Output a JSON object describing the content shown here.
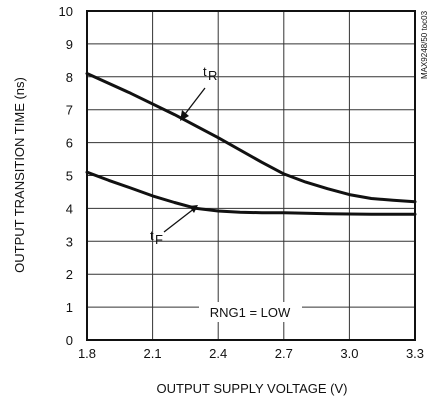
{
  "chart_data": {
    "type": "line",
    "title": "",
    "xlabel": "OUTPUT SUPPLY VOLTAGE (V)",
    "ylabel": "OUTPUT TRANSITION TIME (ns)",
    "xlim": [
      1.8,
      3.3
    ],
    "ylim": [
      0,
      10
    ],
    "x_ticks": [
      "1.8",
      "2.1",
      "2.4",
      "2.7",
      "3.0",
      "3.3"
    ],
    "y_ticks": [
      "0",
      "1",
      "2",
      "3",
      "4",
      "5",
      "6",
      "7",
      "8",
      "9",
      "10"
    ],
    "grid": true,
    "series": [
      {
        "name": "tR",
        "x": [
          1.8,
          2.0,
          2.2,
          2.4,
          2.6,
          2.7,
          2.8,
          2.9,
          3.0,
          3.1,
          3.2,
          3.3
        ],
        "y": [
          8.1,
          7.5,
          6.85,
          6.15,
          5.4,
          5.05,
          4.8,
          4.6,
          4.42,
          4.3,
          4.25,
          4.2
        ]
      },
      {
        "name": "tF",
        "x": [
          1.8,
          1.9,
          2.0,
          2.1,
          2.2,
          2.3,
          2.4,
          2.5,
          2.6,
          2.7,
          2.8,
          2.9,
          3.0,
          3.1,
          3.2,
          3.3
        ],
        "y": [
          5.1,
          4.85,
          4.62,
          4.38,
          4.18,
          4.0,
          3.92,
          3.88,
          3.87,
          3.87,
          3.85,
          3.84,
          3.83,
          3.82,
          3.82,
          3.82
        ]
      }
    ],
    "annotations": {
      "tR_label": "R",
      "tF_label": "F",
      "condition": "RNG1 = LOW",
      "figure_id": "MAX9248/50 toc03"
    }
  }
}
